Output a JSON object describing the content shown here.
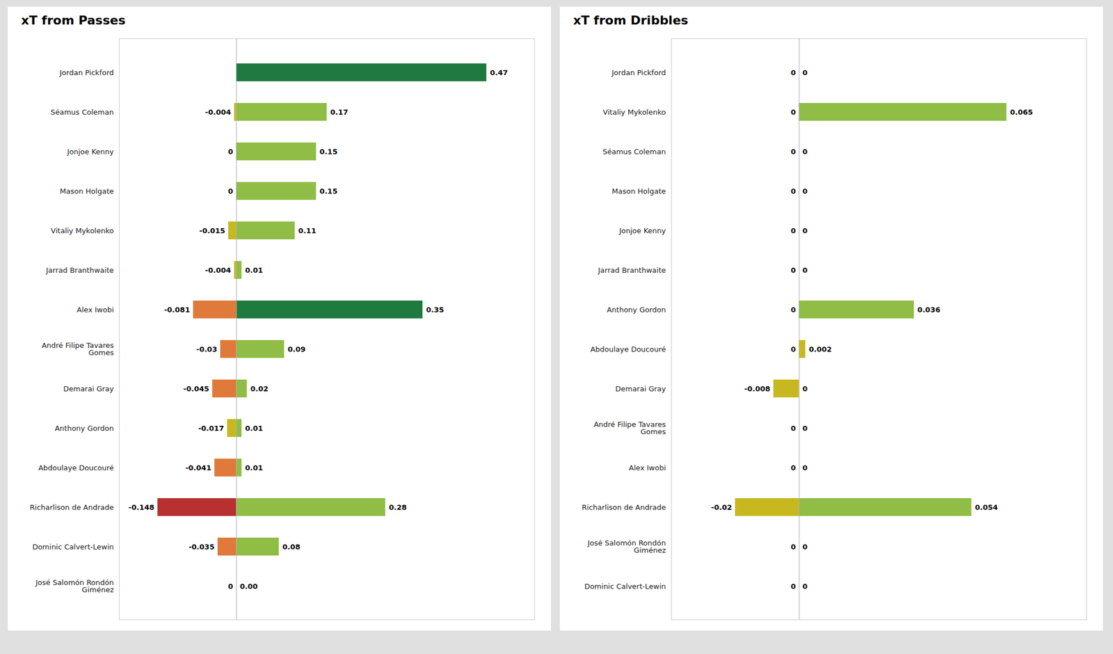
{
  "chart_data": [
    {
      "type": "bar",
      "orientation": "horizontal",
      "title": "xT from Passes",
      "categories": [
        "Jordan Pickford",
        "Séamus Coleman",
        "Jonjoe Kenny",
        "Mason Holgate",
        "Vitaliy Mykolenko",
        "Jarrad Branthwaite",
        "Alex Iwobi",
        "André Filipe Tavares\nGomes",
        "Demarai Gray",
        "Anthony Gordon",
        "Abdoulaye Doucouré",
        "Richarlison de Andrade",
        "Dominic Calvert-Lewin",
        "José Salomón Rondón\nGiménez"
      ],
      "series": [
        {
          "values": [
            0,
            -0.004,
            0,
            0,
            -0.015,
            -0.004,
            -0.081,
            -0.03,
            -0.045,
            -0.017,
            -0.041,
            -0.148,
            -0.035,
            0
          ],
          "value_labels": [
            null,
            "-0.004",
            "0",
            "0",
            "-0.015",
            "-0.004",
            "-0.081",
            "-0.03",
            "-0.045",
            "-0.017",
            "-0.041",
            "-0.148",
            "-0.035",
            "0"
          ],
          "colors": [
            "#c8b820",
            "#c8b820",
            "#c8b820",
            "#c8b820",
            "#c8b820",
            "#c8b820",
            "#e07a3a",
            "#e07a3a",
            "#e07a3a",
            "#c8b820",
            "#e07a3a",
            "#b83030",
            "#e07a3a",
            "#c8b820"
          ]
        },
        {
          "values": [
            0.47,
            0.17,
            0.15,
            0.15,
            0.11,
            0.01,
            0.35,
            0.09,
            0.02,
            0.01,
            0.01,
            0.28,
            0.08,
            0.0
          ],
          "value_labels": [
            "0.47",
            "0.17",
            "0.15",
            "0.15",
            "0.11",
            "0.01",
            "0.35",
            "0.09",
            "0.02",
            "0.01",
            "0.01",
            "0.28",
            "0.08",
            "0.00"
          ],
          "colors": [
            "#1e7a3e",
            "#8fbd45",
            "#8fbd45",
            "#8fbd45",
            "#8fbd45",
            "#8fbd45",
            "#1e7a3e",
            "#8fbd45",
            "#8fbd45",
            "#8fbd45",
            "#8fbd45",
            "#8fbd45",
            "#8fbd45",
            "#c8b820"
          ]
        }
      ],
      "xlim": [
        -0.22,
        0.56
      ],
      "tick_labels": "y",
      "data_labels": true
    },
    {
      "type": "bar",
      "orientation": "horizontal",
      "title": "xT from Dribbles",
      "categories": [
        "Jordan Pickford",
        "Vitaliy Mykolenko",
        "Séamus Coleman",
        "Mason Holgate",
        "Jonjoe Kenny",
        "Jarrad Branthwaite",
        "Anthony Gordon",
        "Abdoulaye Doucouré",
        "Demarai Gray",
        "André Filipe Tavares\nGomes",
        "Alex Iwobi",
        "Richarlison de Andrade",
        "José Salomón Rondón\nGiménez",
        "Dominic Calvert-Lewin"
      ],
      "series": [
        {
          "values": [
            0,
            0,
            0,
            0,
            0,
            0,
            0,
            0,
            -0.008,
            0,
            0,
            -0.02,
            0,
            0
          ],
          "value_labels": [
            "0",
            "0",
            "0",
            "0",
            "0",
            "0",
            "0",
            "0",
            "-0.008",
            "0",
            "0",
            "-0.02",
            "0",
            "0"
          ],
          "colors": [
            "#c8b820",
            "#c8b820",
            "#c8b820",
            "#c8b820",
            "#c8b820",
            "#c8b820",
            "#c8b820",
            "#c8b820",
            "#c8b820",
            "#c8b820",
            "#c8b820",
            "#c8b820",
            "#c8b820",
            "#c8b820"
          ]
        },
        {
          "values": [
            0,
            0.065,
            0,
            0,
            0,
            0,
            0.036,
            0.002,
            0,
            0,
            0,
            0.054,
            0,
            0
          ],
          "value_labels": [
            "0",
            "0.065",
            "0",
            "0",
            "0",
            "0",
            "0.036",
            "0.002",
            "0",
            "0",
            "0",
            "0.054",
            "0",
            "0"
          ],
          "colors": [
            "#c8b820",
            "#8fbd45",
            "#c8b820",
            "#c8b820",
            "#c8b820",
            "#c8b820",
            "#8fbd45",
            "#c8b820",
            "#c8b820",
            "#c8b820",
            "#c8b820",
            "#8fbd45",
            "#c8b820",
            "#c8b820"
          ]
        }
      ],
      "xlim": [
        -0.04,
        0.09
      ],
      "tick_labels": "y",
      "data_labels": true
    }
  ]
}
